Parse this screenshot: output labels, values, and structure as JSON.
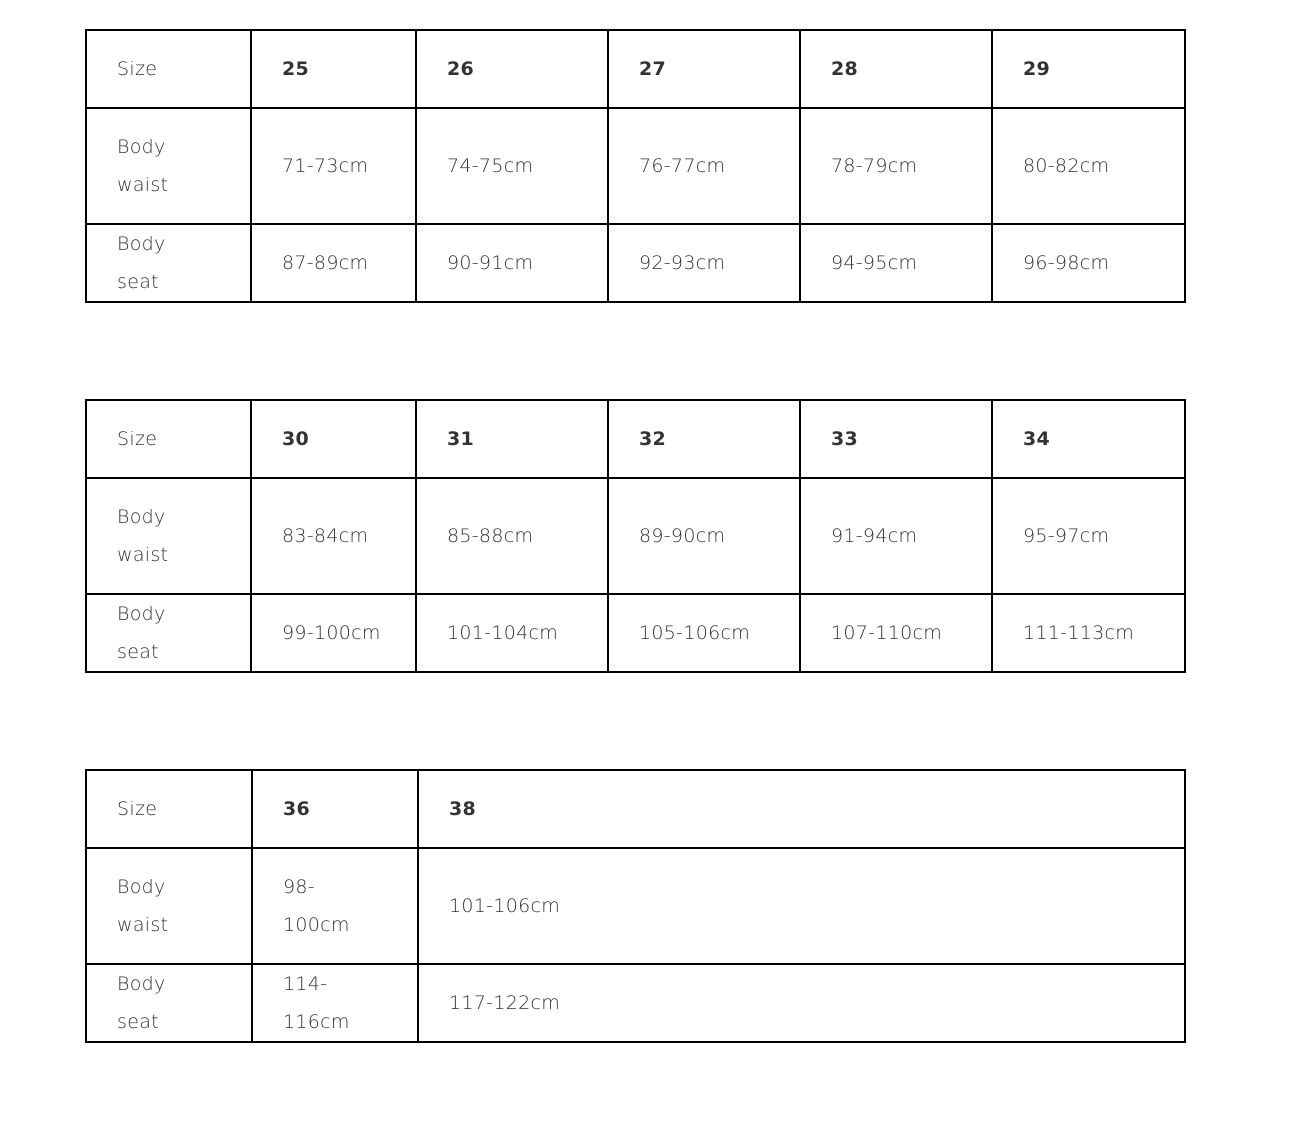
{
  "tables": [
    {
      "row_labels": [
        "Size",
        "Body waist",
        "Body seat"
      ],
      "sizes": [
        "25",
        "26",
        "27",
        "28",
        "29"
      ],
      "body_waist": [
        "71-73cm",
        "74-75cm",
        "76-77cm",
        "78-79cm",
        "80-82cm"
      ],
      "body_seat": [
        "87-89cm",
        "90-91cm",
        "92-93cm",
        "94-95cm",
        "96-98cm"
      ]
    },
    {
      "row_labels": [
        "Size",
        "Body waist",
        "Body seat"
      ],
      "sizes": [
        "30",
        "31",
        "32",
        "33",
        "34"
      ],
      "body_waist": [
        "83-84cm",
        "85-88cm",
        "89-90cm",
        "91-94cm",
        "95-97cm"
      ],
      "body_seat": [
        "99-100cm",
        "101-104cm",
        "105-106cm",
        "107-110cm",
        "111-113cm"
      ]
    },
    {
      "row_labels": [
        "Size",
        "Body waist",
        "Body seat"
      ],
      "sizes": [
        "36",
        "38"
      ],
      "body_waist": [
        "98-100cm",
        "101-106cm"
      ],
      "body_seat": [
        "114-116cm",
        "117-122cm"
      ]
    }
  ]
}
